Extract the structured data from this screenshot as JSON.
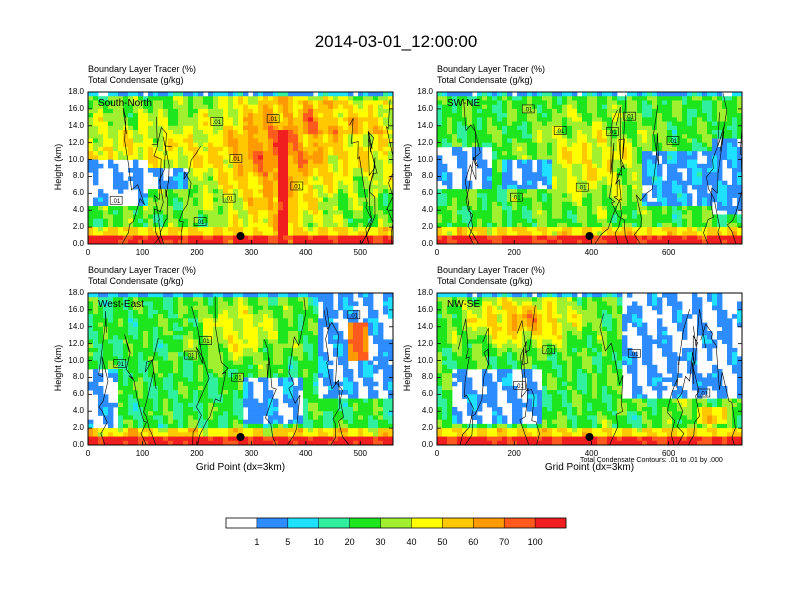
{
  "main_title": "2014-03-01_12:00:00",
  "subtitle_line1": "Boundary Layer Tracer   (%)",
  "subtitle_line2": "Total Condensate   (g/kg)",
  "contour_note": "Total Condensate Contours: .01 to .01 by .000",
  "colorbar": {
    "labels": [
      "1",
      "5",
      "10",
      "20",
      "30",
      "40",
      "50",
      "60",
      "70",
      "100"
    ],
    "colors": [
      "#ffffff",
      "#2d8cff",
      "#1ee1ff",
      "#30f0a0",
      "#1ee61e",
      "#a0f030",
      "#ffff00",
      "#ffc800",
      "#ff9b00",
      "#ff5a1e",
      "#f01e1e"
    ]
  },
  "chart_data": [
    {
      "type": "heatmap",
      "panel_label": "South-North",
      "ylabel": "Height (km)",
      "xlabel": "",
      "xlim": [
        0,
        560
      ],
      "ylim": [
        0,
        18
      ],
      "xticks": [
        "0",
        "100",
        "200",
        "300",
        "400",
        "500"
      ],
      "yticks": [
        "0.0",
        "2.0",
        "4.0",
        "6.0",
        "8.0",
        "10.0",
        "12.0",
        "14.0",
        "16.0",
        "18.0"
      ],
      "contour_labels": [
        ".01",
        ".01",
        ".01",
        ".01",
        ".01",
        ".01",
        ".01"
      ],
      "marker_x": 280
    },
    {
      "type": "heatmap",
      "panel_label": "SW-NE",
      "ylabel": "Height (km)",
      "xlabel": "",
      "xlim": [
        0,
        790
      ],
      "ylim": [
        0,
        18
      ],
      "xticks": [
        "0",
        "200",
        "400",
        "600"
      ],
      "yticks": [
        "0.0",
        "2.0",
        "4.0",
        "6.0",
        "8.0",
        "10.0",
        "12.0",
        "14.0",
        "16.0",
        "18.0"
      ],
      "contour_labels": [
        ".01",
        ".01",
        ".01",
        ".01",
        ".01",
        ".01",
        ".01"
      ],
      "marker_x": 395
    },
    {
      "type": "heatmap",
      "panel_label": "West-East",
      "ylabel": "Height (km)",
      "xlabel": "Grid Point (dx=3km)",
      "xlim": [
        0,
        560
      ],
      "ylim": [
        0,
        18
      ],
      "xticks": [
        "0",
        "100",
        "200",
        "300",
        "400",
        "500"
      ],
      "yticks": [
        "0.0",
        "2.0",
        "4.0",
        "6.0",
        "8.0",
        "10.0",
        "12.0",
        "14.0",
        "16.0",
        "18.0"
      ],
      "contour_labels": [
        ".01",
        ".01",
        ".01",
        ".01",
        ".01"
      ],
      "marker_x": 280
    },
    {
      "type": "heatmap",
      "panel_label": "NW-SE",
      "ylabel": "Height (km)",
      "xlabel": "Grid Point (dx=3km)",
      "xlim": [
        0,
        790
      ],
      "ylim": [
        0,
        18
      ],
      "xticks": [
        "0",
        "200",
        "400",
        "600"
      ],
      "yticks": [
        "0.0",
        "2.0",
        "4.0",
        "6.0",
        "8.0",
        "10.0",
        "12.0",
        "14.0",
        "16.0",
        "18.0"
      ],
      "contour_labels": [
        ".01",
        ".01",
        ".01",
        ".01"
      ],
      "marker_x": 395
    }
  ]
}
